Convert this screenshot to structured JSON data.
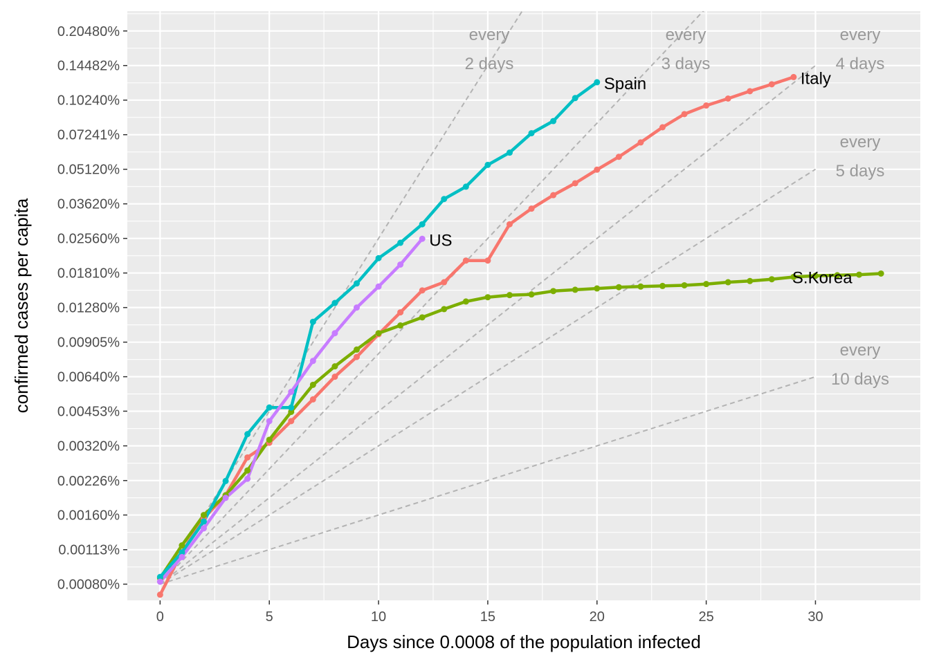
{
  "chart_data": {
    "type": "line",
    "xlabel": "Days since 0.0008 of the population infected",
    "ylabel": "confirmed cases per capita",
    "x_scale": "linear",
    "y_scale": "log",
    "xlim": [
      -1.5,
      34.8
    ],
    "ylim": [
      0.00068,
      0.25
    ],
    "x_ticks": [
      0,
      5,
      10,
      15,
      20,
      25,
      30
    ],
    "x_tick_labels": [
      "0",
      "5",
      "10",
      "15",
      "20",
      "25",
      "30"
    ],
    "y_ticks": [
      0.0008,
      0.00113,
      0.0016,
      0.00226,
      0.0032,
      0.00453,
      0.0064,
      0.00905,
      0.0128,
      0.0181,
      0.0256,
      0.0362,
      0.0512,
      0.07241,
      0.1024,
      0.14482,
      0.2048
    ],
    "y_tick_labels": [
      "0.00080%",
      "0.00113%",
      "0.00160%",
      "0.00226%",
      "0.00320%",
      "0.00453%",
      "0.00640%",
      "0.00905%",
      "0.01280%",
      "0.01810%",
      "0.02560%",
      "0.03620%",
      "0.05120%",
      "0.07241%",
      "0.10240%",
      "0.14482%",
      "0.20480%"
    ],
    "grid": true,
    "legend": "none",
    "reference_lines": [
      {
        "doubling_days": 2,
        "label_line1": "every",
        "label_line2": "2 days"
      },
      {
        "doubling_days": 3,
        "label_line1": "every",
        "label_line2": "3 days"
      },
      {
        "doubling_days": 4,
        "label_line1": "every",
        "label_line2": "4 days"
      },
      {
        "doubling_days": 5,
        "label_line1": "every",
        "label_line2": "5 days"
      },
      {
        "doubling_days": 10,
        "label_line1": "every",
        "label_line2": "10 days"
      }
    ],
    "reference_start": 0.0008,
    "series": [
      {
        "name": "Italy",
        "color": "#F8766D",
        "x": [
          0,
          1,
          2,
          3,
          4,
          5,
          6,
          7,
          8,
          9,
          10,
          11,
          12,
          13,
          14,
          15,
          16,
          17,
          18,
          19,
          20,
          21,
          22,
          23,
          24,
          25,
          26,
          27,
          28,
          29
        ],
        "values": [
          0.00072,
          0.0011,
          0.00155,
          0.00195,
          0.00285,
          0.0033,
          0.0041,
          0.0051,
          0.0064,
          0.0078,
          0.0098,
          0.0122,
          0.0152,
          0.0165,
          0.0205,
          0.0205,
          0.0295,
          0.0345,
          0.0395,
          0.0445,
          0.051,
          0.058,
          0.067,
          0.078,
          0.089,
          0.097,
          0.104,
          0.112,
          0.12,
          0.129
        ]
      },
      {
        "name": "S.Korea",
        "color": "#7CAE00",
        "x": [
          0,
          1,
          2,
          3,
          4,
          5,
          6,
          7,
          8,
          9,
          10,
          11,
          12,
          13,
          14,
          15,
          16,
          17,
          18,
          19,
          20,
          21,
          22,
          23,
          24,
          25,
          26,
          27,
          28,
          29,
          30,
          31,
          32,
          33
        ],
        "values": [
          0.00085,
          0.00118,
          0.0016,
          0.00195,
          0.0025,
          0.0034,
          0.0045,
          0.0059,
          0.0071,
          0.0084,
          0.0099,
          0.0107,
          0.0116,
          0.0126,
          0.0136,
          0.0142,
          0.0145,
          0.0146,
          0.0151,
          0.0153,
          0.0155,
          0.0157,
          0.0158,
          0.0159,
          0.016,
          0.0162,
          0.0165,
          0.0167,
          0.017,
          0.0174,
          0.0176,
          0.0177,
          0.0178,
          0.018
        ]
      },
      {
        "name": "Spain",
        "color": "#00BFC4",
        "x": [
          0,
          1,
          2,
          3,
          4,
          5,
          6,
          7,
          8,
          9,
          10,
          11,
          12,
          13,
          14,
          15,
          16,
          17,
          18,
          19,
          20
        ],
        "values": [
          0.00086,
          0.0011,
          0.0015,
          0.00225,
          0.0036,
          0.0047,
          0.0047,
          0.0111,
          0.0134,
          0.0163,
          0.021,
          0.0245,
          0.0295,
          0.038,
          0.043,
          0.0535,
          0.0605,
          0.0735,
          0.083,
          0.1045,
          0.1225
        ]
      },
      {
        "name": "US",
        "color": "#C77CFF",
        "x": [
          0,
          1,
          2,
          3,
          4,
          5,
          6,
          7,
          8,
          9,
          10,
          11,
          12
        ],
        "values": [
          0.00082,
          0.00105,
          0.0014,
          0.0019,
          0.0023,
          0.0041,
          0.0055,
          0.0075,
          0.0099,
          0.0128,
          0.0158,
          0.0197,
          0.0255
        ]
      }
    ]
  }
}
